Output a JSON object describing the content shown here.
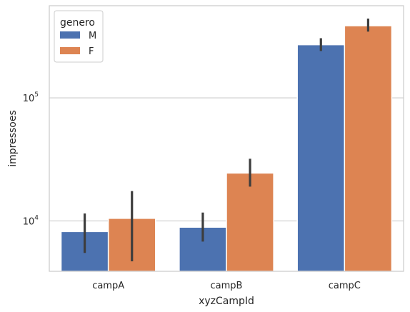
{
  "chart_data": {
    "type": "bar",
    "title": "",
    "xlabel": "xyzCampId",
    "ylabel": "impressoes",
    "yscale": "log",
    "ylim": [
      3900,
      560000
    ],
    "grid": "horizontal",
    "categories": [
      "campA",
      "campB",
      "campC"
    ],
    "yticks": [
      {
        "value": 10000,
        "base": "10",
        "exp": "4"
      },
      {
        "value": 100000,
        "base": "10",
        "exp": "5"
      }
    ],
    "series": [
      {
        "name": "M",
        "color": "#4c72b0",
        "values": [
          8200,
          8900,
          270000
        ],
        "ci_low": [
          5500,
          6800,
          240000
        ],
        "ci_high": [
          11500,
          11700,
          305000
        ]
      },
      {
        "name": "F",
        "color": "#dd8452",
        "values": [
          10500,
          24500,
          385000
        ],
        "ci_low": [
          4700,
          19000,
          345000
        ],
        "ci_high": [
          17500,
          32000,
          440000
        ]
      }
    ],
    "legend": {
      "title": "genero",
      "position": "top-left"
    }
  }
}
